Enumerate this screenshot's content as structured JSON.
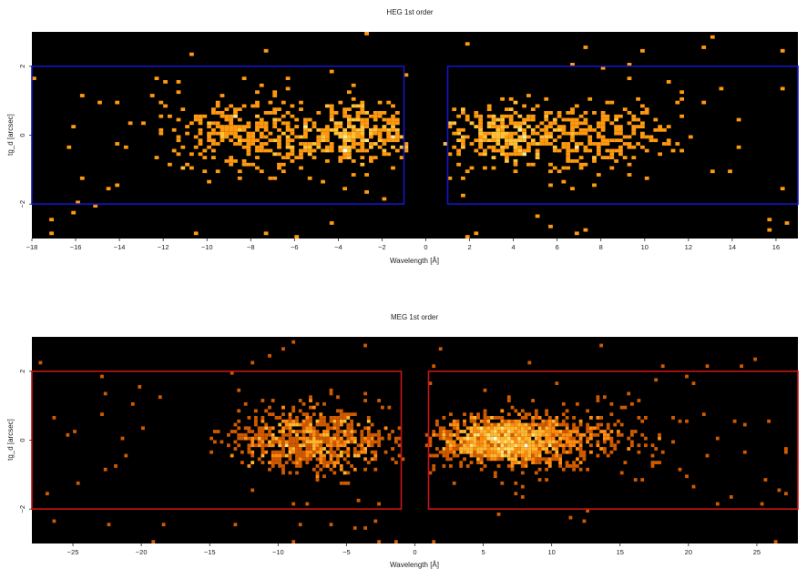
{
  "chart_data": [
    {
      "type": "heatmap",
      "title": "HEG 1st order",
      "xlabel": "Wavelength [Å]",
      "ylabel": "tg_d [arcsec]",
      "xlim": [
        -18,
        17
      ],
      "ylim": [
        -3,
        3
      ],
      "x_ticks": [
        -18,
        -16,
        -14,
        -12,
        -10,
        -8,
        -6,
        -4,
        -2,
        0,
        2,
        4,
        6,
        8,
        10,
        12,
        14,
        16
      ],
      "x_tick_labels": [
        "−18",
        "−16",
        "−14",
        "−12",
        "−10",
        "−8",
        "−6",
        "−4",
        "−2",
        "0",
        "2",
        "4",
        "6",
        "8",
        "10",
        "12",
        "14",
        "16"
      ],
      "y_ticks": [
        -2,
        0,
        2
      ],
      "y_tick_labels": [
        "−2",
        "0",
        "2"
      ],
      "background": "#000000",
      "grid": false,
      "region_color": "#1414c8",
      "regions": [
        {
          "name": "minus-order",
          "x": [
            -18,
            -1
          ],
          "y": [
            -2,
            2
          ]
        },
        {
          "name": "plus-order",
          "x": [
            1,
            17
          ],
          "y": [
            -2,
            2
          ]
        }
      ],
      "clusters": [
        {
          "x_center": -3.2,
          "x_sd": 1.6,
          "y_sd": 0.45,
          "n": 280,
          "weight": 1.0
        },
        {
          "x_center": -8.0,
          "x_sd": 2.0,
          "y_sd": 0.55,
          "n": 300,
          "weight": 0.8
        },
        {
          "x_center": 3.5,
          "x_sd": 1.4,
          "y_sd": 0.45,
          "n": 250,
          "weight": 1.0
        },
        {
          "x_center": 7.2,
          "x_sd": 2.0,
          "y_sd": 0.55,
          "n": 260,
          "weight": 0.8
        }
      ],
      "background_events": 90,
      "bin_width": 0.2,
      "bin_height": 0.1,
      "colormap": [
        "#b03a00",
        "#e06a00",
        "#ff9a10",
        "#ffc238",
        "#ffe890",
        "#ffffff"
      ]
    },
    {
      "type": "heatmap",
      "title": "MEG 1st order",
      "xlabel": "Wavelength [Å]",
      "ylabel": "tg_d [arcsec]",
      "xlim": [
        -28,
        28
      ],
      "ylim": [
        -3,
        3
      ],
      "x_ticks": [
        -25,
        -20,
        -15,
        -10,
        -5,
        0,
        5,
        10,
        15,
        20,
        25
      ],
      "x_tick_labels": [
        "−25",
        "−20",
        "−15",
        "−10",
        "−5",
        "0",
        "5",
        "10",
        "15",
        "20",
        "25"
      ],
      "y_ticks": [
        -2,
        0,
        2
      ],
      "y_tick_labels": [
        "−2",
        "0",
        "2"
      ],
      "background": "#000000",
      "grid": false,
      "region_color": "#c81414",
      "regions": [
        {
          "name": "minus-order",
          "x": [
            -28,
            -1
          ],
          "y": [
            -2,
            2
          ]
        },
        {
          "name": "plus-order",
          "x": [
            1,
            28
          ],
          "y": [
            -2,
            2
          ]
        }
      ],
      "clusters": [
        {
          "x_center": -7.5,
          "x_sd": 3.0,
          "y_sd": 0.45,
          "n": 700,
          "weight": 1.0
        },
        {
          "x_center": 6.5,
          "x_sd": 2.5,
          "y_sd": 0.35,
          "n": 1100,
          "weight": 1.0
        },
        {
          "x_center": 11.0,
          "x_sd": 3.5,
          "y_sd": 0.5,
          "n": 300,
          "weight": 0.6
        }
      ],
      "background_events": 110,
      "bin_width": 0.25,
      "bin_height": 0.1,
      "colormap": [
        "#8a2a00",
        "#d05a00",
        "#ff8c10",
        "#ffb830",
        "#ffe070",
        "#ffffff"
      ]
    }
  ]
}
